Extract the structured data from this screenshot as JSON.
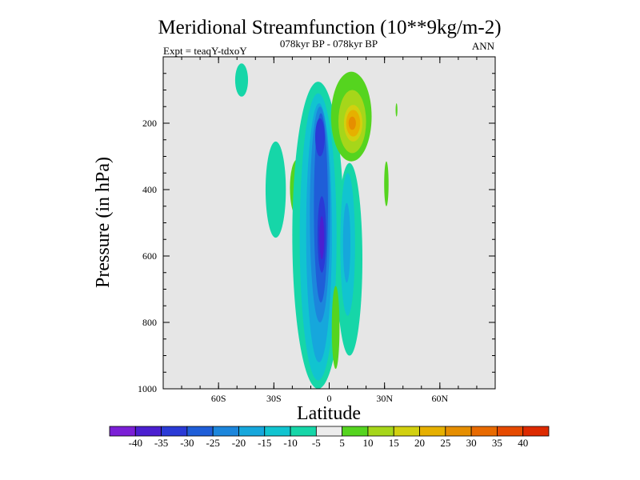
{
  "chart_data": {
    "type": "contour",
    "title": "Meridional Streamfunction (10**9kg/m-2)",
    "subtitle": "078kyr BP - 078kyr BP",
    "experiment": "Expt = teaqY-tdxoY",
    "season": "ANN",
    "xlabel": "Latitude",
    "ylabel": "Pressure (in hPa)",
    "xlim": [
      -90,
      90
    ],
    "ylim": [
      1000,
      0
    ],
    "x_ticks": [
      {
        "value": -60,
        "label": "60S"
      },
      {
        "value": -30,
        "label": "30S"
      },
      {
        "value": 0,
        "label": "0"
      },
      {
        "value": 30,
        "label": "30N"
      },
      {
        "value": 60,
        "label": "60N"
      }
    ],
    "y_ticks": [
      {
        "value": 200,
        "label": "200"
      },
      {
        "value": 400,
        "label": "400"
      },
      {
        "value": 600,
        "label": "600"
      },
      {
        "value": 800,
        "label": "800"
      },
      {
        "value": 1000,
        "label": "1000"
      }
    ],
    "background_color": "#e6e6e6",
    "colorbar": {
      "levels": [
        -40,
        -35,
        -30,
        -25,
        -20,
        -15,
        -10,
        -5,
        5,
        10,
        15,
        20,
        25,
        30,
        35,
        40
      ],
      "labels": [
        "-40",
        "-35",
        "-30",
        "-25",
        "-20",
        "-15",
        "-10",
        "-5",
        "5",
        "10",
        "15",
        "20",
        "25",
        "30",
        "35",
        "40"
      ],
      "colors": [
        "#7b1fd6",
        "#4b1fd0",
        "#2a3ad6",
        "#1f5ed8",
        "#1c86dc",
        "#16a7dc",
        "#11c4d0",
        "#16d6a8",
        "#ececec",
        "#55d41f",
        "#a6d61a",
        "#d2d00f",
        "#e6b000",
        "#e68e00",
        "#e86a00",
        "#e64a00",
        "#dd2a00"
      ]
    },
    "features": [
      {
        "name": "negative-cell-upper",
        "center_lat": -5,
        "center_p": 240,
        "min_value": -30
      },
      {
        "name": "negative-cell-mid",
        "center_lat": -4,
        "center_p": 540,
        "min_value": -35
      },
      {
        "name": "positive-cell-upper",
        "center_lat": 10,
        "center_p": 200,
        "max_value": 25
      },
      {
        "name": "weak-negative-column",
        "center_lat": 10,
        "center_p": 540,
        "min_value": -15
      },
      {
        "name": "weak-negative-sh",
        "center_lat": -28,
        "center_p": 360,
        "min_value": -10
      },
      {
        "name": "weak-positive-sh",
        "center_lat": -18,
        "center_p": 400,
        "max_value": 10
      },
      {
        "name": "weak-positive-low",
        "center_lat": 3,
        "center_p": 800,
        "max_value": 10
      },
      {
        "name": "weak-positive-nh",
        "center_lat": 31,
        "center_p": 380,
        "max_value": 10
      },
      {
        "name": "weak-negative-top-sh",
        "center_lat": -46,
        "center_p": 60,
        "min_value": -10
      }
    ]
  }
}
